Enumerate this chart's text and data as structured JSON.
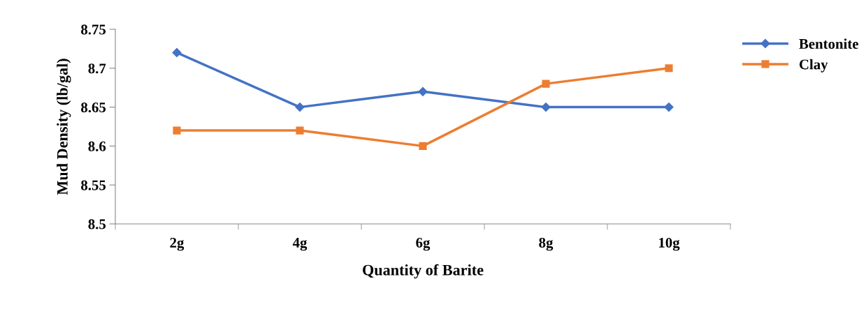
{
  "chart_data": {
    "type": "line",
    "xlabel": "Quantity of Barite",
    "ylabel": "Mud Density (lb/gal)",
    "categories": [
      "2g",
      "4g",
      "6g",
      "8g",
      "10g"
    ],
    "series": [
      {
        "name": "Bentonite",
        "color": "#4472c4",
        "marker": "diamond",
        "values": [
          8.72,
          8.65,
          8.67,
          8.65,
          8.65
        ]
      },
      {
        "name": "Clay",
        "color": "#ed7d31",
        "marker": "square",
        "values": [
          8.62,
          8.62,
          8.6,
          8.68,
          8.7
        ]
      }
    ],
    "ylim": [
      8.5,
      8.75
    ],
    "yticks": [
      8.5,
      8.55,
      8.6,
      8.65,
      8.7,
      8.75
    ],
    "grid": false,
    "legend": "top right",
    "line_style": "solid"
  }
}
